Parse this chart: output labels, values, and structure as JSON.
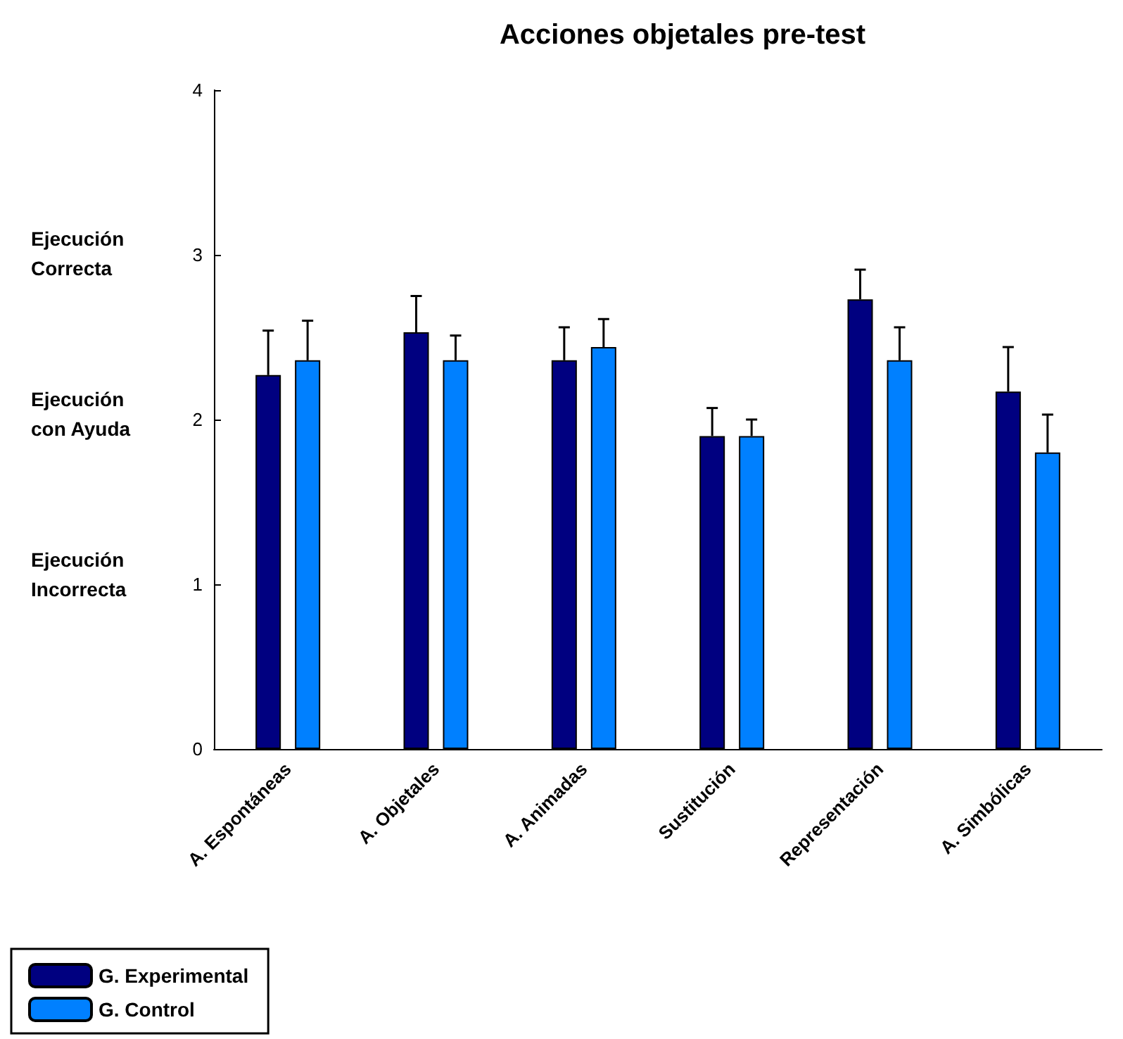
{
  "chart_data": {
    "type": "bar",
    "title": "Acciones objetales pre-test",
    "categories": [
      "A. Espontáneas",
      "A. Objetales",
      "A. Animadas",
      "Sustitución",
      "Representación",
      "A. Simbólicas"
    ],
    "series": [
      {
        "name": "G. Experimental",
        "color": "#000080",
        "values": [
          2.27,
          2.53,
          2.36,
          1.9,
          2.73,
          2.17
        ],
        "errors": [
          [
            2.27,
            2.54
          ],
          [
            2.53,
            2.75
          ],
          [
            2.36,
            2.56
          ],
          [
            1.9,
            2.07
          ],
          [
            2.73,
            2.91
          ],
          [
            2.17,
            2.44
          ]
        ]
      },
      {
        "name": "G. Control",
        "color": "#0080ff",
        "values": [
          2.36,
          2.36,
          2.44,
          1.9,
          2.36,
          1.8
        ],
        "errors": [
          [
            2.36,
            2.6
          ],
          [
            2.36,
            2.51
          ],
          [
            2.44,
            2.61
          ],
          [
            1.9,
            2.0
          ],
          [
            2.36,
            2.56
          ],
          [
            1.8,
            2.03
          ]
        ]
      }
    ],
    "ylim": [
      0,
      4
    ],
    "yticks": [
      0,
      1,
      2,
      3,
      4
    ],
    "annotations": [
      "Ejecución\nCorrecta",
      "Ejecución\ncon Ayuda",
      "Ejecución\nIncorrecta"
    ],
    "grid": false,
    "legend": "bottom left"
  }
}
